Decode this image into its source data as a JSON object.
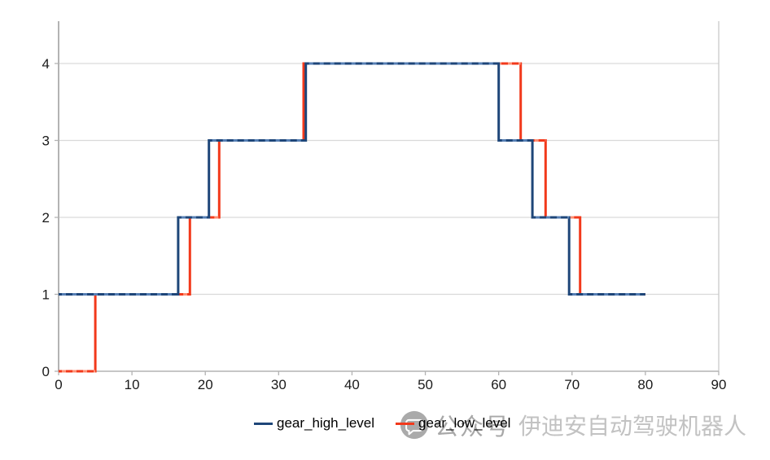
{
  "chart_data": {
    "type": "line",
    "subtype": "step",
    "title": "",
    "xlabel": "",
    "ylabel": "",
    "xlim": [
      0,
      90
    ],
    "ylim": [
      0,
      4.55
    ],
    "x_ticks": [
      0,
      10,
      20,
      30,
      40,
      50,
      60,
      70,
      80,
      90
    ],
    "y_ticks": [
      0,
      1,
      2,
      3,
      4
    ],
    "grid": "horizontal-only",
    "legend_position": "bottom",
    "series": [
      {
        "name": "gear_high_level",
        "color": "#1e4679",
        "dash_gap_color": "#567fb4",
        "points": [
          [
            0,
            1
          ],
          [
            16.3,
            1
          ],
          [
            16.3,
            2
          ],
          [
            20.5,
            2
          ],
          [
            20.5,
            3
          ],
          [
            33.7,
            3
          ],
          [
            33.7,
            4
          ],
          [
            60,
            4
          ],
          [
            60,
            3
          ],
          [
            64.6,
            3
          ],
          [
            64.6,
            2
          ],
          [
            69.6,
            2
          ],
          [
            69.6,
            1
          ],
          [
            80,
            1
          ]
        ]
      },
      {
        "name": "gear_low_level",
        "color": "#f2391b",
        "dash_gap_color": "#ff8f73",
        "points": [
          [
            0,
            0
          ],
          [
            5,
            0
          ],
          [
            5,
            1
          ],
          [
            17.9,
            1
          ],
          [
            17.9,
            2
          ],
          [
            21.9,
            2
          ],
          [
            21.9,
            3
          ],
          [
            33.4,
            3
          ],
          [
            33.4,
            4
          ],
          [
            63,
            4
          ],
          [
            63,
            3
          ],
          [
            66.4,
            3
          ],
          [
            66.4,
            2
          ],
          [
            71.1,
            2
          ],
          [
            71.1,
            1
          ],
          [
            80,
            1
          ]
        ]
      }
    ],
    "style_colors": {
      "gridline": "#d9d9d9",
      "axis": "#b3b3b3",
      "plot_border_right": "#c9c9c9",
      "tick_label": "#1a1a1a"
    }
  },
  "legend": {
    "items": [
      {
        "label": "gear_high_level",
        "color": "#1e4679"
      },
      {
        "label": "gear_low_level",
        "color": "#f2391b"
      }
    ]
  },
  "watermark": {
    "icon": "chat-bubble-icon",
    "icon_color": "#a3a3a3",
    "account_label": "公众号",
    "brand_text": "伊迪安自动驾驶机器人"
  }
}
